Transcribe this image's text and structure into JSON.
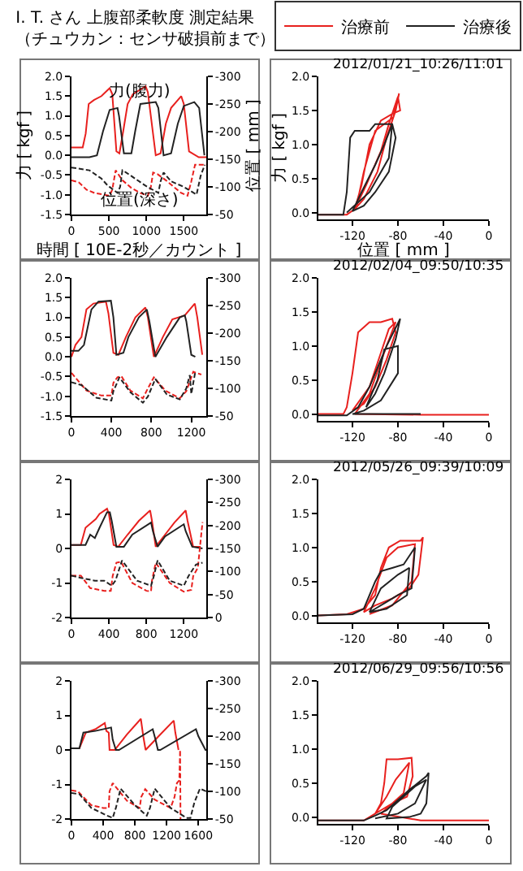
{
  "chart_data": [
    {
      "type": "line",
      "title": "I. T. さん 上腹部柔軟度 測定結果（チュウカン：センサ破損前まで）",
      "xlabel": "時間 [ 10E-2秒／カウント ]",
      "ylabel": "力 [ kgf ]",
      "y2label": "位置 [ mm ]",
      "legend": "top right",
      "annotations": [
        "力(腹力)",
        "位置(深さ)"
      ],
      "xlim": [
        0,
        1800
      ],
      "xticks": [
        0,
        500,
        1000,
        1500
      ],
      "ylim": [
        -1.5,
        2
      ],
      "yticks": [
        {
          "value": 2,
          "label": "2.0"
        },
        {
          "value": 1.5,
          "label": "1.5"
        },
        {
          "value": 1,
          "label": "1.0"
        },
        {
          "value": 0.5,
          "label": "0.5"
        },
        {
          "value": 0,
          "label": "0.0"
        },
        {
          "value": -0.5,
          "label": "-0.5"
        },
        {
          "value": -1,
          "label": "-1.0"
        },
        {
          "value": -1.5,
          "label": "-1.5"
        }
      ],
      "y2lim": [
        -50,
        -300
      ],
      "y2ticks": [
        -300,
        -250,
        -200,
        -150,
        -100,
        -50
      ],
      "series": [
        {
          "name": "治療前",
          "color": "#e8201e",
          "x": [
            0,
            150,
            190,
            230,
            300,
            400,
            510,
            545,
            600,
            640,
            690,
            750,
            820,
            990,
            1020,
            1125,
            1190,
            1260,
            1330,
            1465,
            1500,
            1570,
            1700,
            1800
          ],
          "values": [
            0.2,
            0.2,
            0.55,
            1.3,
            1.4,
            1.5,
            1.7,
            1.55,
            0.1,
            0.05,
            0.6,
            1.3,
            1.55,
            1.75,
            1.6,
            0.0,
            0.05,
            0.8,
            1.2,
            1.5,
            1.3,
            0.1,
            -0.05,
            -0.05
          ]
        },
        {
          "name": "治療後",
          "color": "#222222",
          "x": [
            0,
            240,
            340,
            420,
            510,
            615,
            635,
            700,
            800,
            850,
            920,
            1125,
            1160,
            1230,
            1330,
            1420,
            1500,
            1640,
            1705,
            1775
          ],
          "values": [
            -0.05,
            -0.05,
            0.0,
            0.6,
            1.15,
            1.2,
            1.0,
            0.05,
            0.05,
            0.6,
            1.3,
            1.35,
            1.2,
            0.0,
            0.05,
            0.8,
            1.25,
            1.35,
            1.2,
            0.0
          ]
        },
        {
          "color": "#e8201e",
          "axis": "y2",
          "line_style": "dashed",
          "x": [
            0,
            100,
            200,
            307,
            510,
            545,
            590,
            680,
            800,
            920,
            1020,
            1060,
            1090,
            1150,
            1260,
            1465,
            1550,
            1600,
            1650,
            1800
          ],
          "values": [
            -112,
            -108,
            -95,
            -89,
            -84,
            -95,
            -130,
            -112,
            -98,
            -89,
            -84,
            -100,
            -126,
            -123,
            -112,
            -89,
            -84,
            -110,
            -140,
            -140
          ]
        },
        {
          "color": "#222222",
          "axis": "y2",
          "line_style": "dashed",
          "x": [
            0,
            240,
            400,
            480,
            615,
            650,
            680,
            730,
            850,
            990,
            1160,
            1190,
            1230,
            1330,
            1500,
            1670,
            1725,
            1780
          ],
          "values": [
            -135,
            -130,
            -115,
            -103,
            -89,
            -100,
            -130,
            -126,
            -115,
            -102,
            -89,
            -110,
            -126,
            -110,
            -100,
            -86,
            -120,
            -140
          ]
        }
      ]
    },
    {
      "type": "line",
      "xlabel": "位置 [ mm ]",
      "ylabel": "力 [ kgf ]",
      "annotations": [
        "2012/01/21_10:26/11:01"
      ],
      "xlim": [
        -150,
        0
      ],
      "xticks": [
        -120,
        -80,
        -40,
        0
      ],
      "ylim": [
        -0.1,
        2
      ],
      "yticks": [
        {
          "value": 0,
          "label": "0.0"
        },
        0.5,
        {
          "value": 1,
          "label": "1.0"
        },
        1.5,
        {
          "value": 2,
          "label": "2.0"
        }
      ],
      "series": [
        {
          "color": "#e8201e",
          "x": [
            -150,
            -125,
            -118,
            -108,
            -95,
            -88,
            -80,
            -78,
            -85,
            -95,
            -105,
            -112,
            -118,
            -110,
            -98,
            -90,
            -82,
            -79,
            -84,
            -100,
            -110,
            -117
          ],
          "values": [
            -0.03,
            -0.03,
            0.05,
            0.4,
            0.9,
            1.3,
            1.7,
            1.5,
            1.45,
            1.35,
            1.0,
            0.4,
            0.05,
            0.2,
            0.6,
            1.1,
            1.5,
            1.75,
            1.4,
            1.2,
            0.6,
            0.05
          ]
        },
        {
          "color": "#222222",
          "x": [
            -150,
            -128,
            -125,
            -122,
            -118,
            -105,
            -100,
            -85,
            -82,
            -88,
            -100,
            -110,
            -120,
            -112,
            -100,
            -92,
            -85,
            -88,
            -105,
            -125
          ],
          "values": [
            -0.03,
            -0.03,
            0.3,
            1.1,
            1.2,
            1.2,
            1.3,
            1.3,
            1.1,
            0.6,
            0.3,
            0.1,
            0.02,
            0.3,
            0.7,
            1.0,
            1.3,
            0.8,
            0.3,
            0.0
          ]
        }
      ]
    },
    {
      "type": "line",
      "xlim": [
        0,
        1350
      ],
      "xticks": [
        0,
        400,
        800,
        1200
      ],
      "ylim": [
        -1.5,
        2
      ],
      "yticks": [
        {
          "value": 2,
          "label": "2.0"
        },
        {
          "value": 1.5,
          "label": "1.5"
        },
        {
          "value": 1,
          "label": "1.0"
        },
        {
          "value": 0.5,
          "label": "0.5"
        },
        {
          "value": 0,
          "label": "0.0"
        },
        {
          "value": -0.5,
          "label": "-0.5"
        },
        {
          "value": -1,
          "label": "-1.0"
        },
        {
          "value": -1.5,
          "label": "-1.5"
        }
      ],
      "y2lim": [
        -50,
        -300
      ],
      "y2ticks": [
        -300,
        -250,
        -200,
        -150,
        -100,
        -50
      ],
      "series": [
        {
          "color": "#e8201e",
          "x": [
            0,
            40,
            100,
            150,
            220,
            345,
            370,
            420,
            470,
            545,
            640,
            740,
            765,
            825,
            915,
            1010,
            1135,
            1235,
            1260,
            1310
          ],
          "values": [
            0.0,
            0.3,
            0.5,
            1.2,
            1.35,
            1.4,
            1.1,
            0.1,
            0.05,
            0.5,
            1.0,
            1.25,
            1.0,
            0.0,
            0.5,
            0.95,
            1.05,
            1.35,
            1.0,
            0.05
          ]
        },
        {
          "color": "#222222",
          "x": [
            0,
            70,
            125,
            200,
            270,
            395,
            420,
            450,
            520,
            570,
            675,
            755,
            780,
            840,
            955,
            1085,
            1135,
            1150,
            1200,
            1240
          ],
          "values": [
            0.15,
            0.15,
            0.3,
            1.2,
            1.4,
            1.42,
            1.0,
            0.05,
            0.1,
            0.5,
            1.0,
            1.2,
            0.9,
            0.0,
            0.5,
            1.0,
            1.05,
            0.9,
            0.05,
            0.0
          ]
        },
        {
          "color": "#e8201e",
          "axis": "y2",
          "line_style": "dashed",
          "x": [
            0,
            150,
            300,
            400,
            420,
            460,
            500,
            590,
            715,
            765,
            825,
            940,
            1085,
            1150,
            1220,
            1300
          ],
          "values": [
            -128,
            -96,
            -87,
            -87,
            -110,
            -120,
            -122,
            -96,
            -82,
            -100,
            -120,
            -96,
            -82,
            -95,
            -130,
            -125
          ]
        },
        {
          "color": "#222222",
          "axis": "y2",
          "line_style": "dashed",
          "x": [
            0,
            100,
            250,
            400,
            420,
            480,
            590,
            715,
            765,
            840,
            955,
            1085,
            1150,
            1185,
            1200,
            1240
          ],
          "values": [
            -111,
            -106,
            -83,
            -78,
            -95,
            -120,
            -93,
            -74,
            -85,
            -117,
            -89,
            -80,
            -100,
            -124,
            -90,
            -130
          ]
        }
      ]
    },
    {
      "type": "line",
      "annotations": [
        "2012/02/04_09:50/10:35"
      ],
      "xlim": [
        -150,
        0
      ],
      "xticks": [
        -120,
        -80,
        -40,
        0
      ],
      "ylim": [
        -0.1,
        2
      ],
      "yticks": [
        {
          "value": 0,
          "label": "0.0"
        },
        0.5,
        {
          "value": 1,
          "label": "1.0"
        },
        1.5,
        {
          "value": 2,
          "label": "2.0"
        }
      ],
      "series": [
        {
          "color": "#e8201e",
          "x": [
            -150,
            -128,
            -125,
            -120,
            -115,
            -105,
            -95,
            -85,
            -82,
            -90,
            -100,
            -110,
            -120,
            -105,
            -95,
            -88,
            -82,
            -90,
            -105,
            -118,
            -60,
            0
          ],
          "values": [
            0.0,
            0.0,
            0.1,
            0.6,
            1.2,
            1.35,
            1.35,
            1.4,
            1.2,
            0.8,
            0.4,
            0.15,
            0.05,
            0.4,
            0.9,
            1.25,
            1.35,
            1.0,
            0.3,
            0.0,
            -0.01,
            -0.01
          ]
        },
        {
          "color": "#222222",
          "x": [
            -150,
            -125,
            -115,
            -105,
            -95,
            -90,
            -78,
            -82,
            -92,
            -100,
            -108,
            -98,
            -92,
            -80,
            -80,
            -95,
            -110,
            -120,
            -60
          ],
          "values": [
            -0.02,
            -0.02,
            0.1,
            0.4,
            0.8,
            1.0,
            1.4,
            1.1,
            0.6,
            0.3,
            0.1,
            0.5,
            0.95,
            1.0,
            0.6,
            0.2,
            0.05,
            0.0,
            0.0
          ]
        }
      ]
    },
    {
      "type": "line",
      "xlim": [
        0,
        1440
      ],
      "xticks": [
        0,
        400,
        800,
        1200
      ],
      "ylim": [
        -2,
        2
      ],
      "yticks": [
        -2,
        -1,
        0,
        1,
        2
      ],
      "y2lim": [
        0,
        -300
      ],
      "y2ticks": [
        -300,
        -250,
        -200,
        -150,
        -100,
        -50,
        0
      ],
      "series": [
        {
          "color": "#e8201e",
          "x": [
            0,
            100,
            150,
            260,
            300,
            380,
            400,
            450,
            500,
            600,
            720,
            840,
            860,
            900,
            1000,
            1100,
            1220,
            1240,
            1300,
            1380
          ],
          "values": [
            0.1,
            0.1,
            0.6,
            0.85,
            1.0,
            1.15,
            1.0,
            0.1,
            0.05,
            0.4,
            0.8,
            1.1,
            0.8,
            0.05,
            0.4,
            0.75,
            1.1,
            0.8,
            0.05,
            0.05
          ]
        },
        {
          "color": "#222222",
          "x": [
            0,
            150,
            200,
            250,
            300,
            380,
            410,
            430,
            480,
            560,
            650,
            850,
            870,
            920,
            1000,
            1200,
            1220,
            1290,
            1400
          ],
          "values": [
            0.1,
            0.1,
            0.4,
            0.3,
            0.6,
            1.05,
            1.05,
            0.8,
            0.05,
            0.05,
            0.4,
            0.75,
            0.5,
            0.05,
            0.35,
            0.7,
            0.5,
            0.05,
            0.0
          ]
        },
        {
          "color": "#e8201e",
          "axis": "y2",
          "line_style": "dashed",
          "x": [
            0,
            100,
            200,
            350,
            420,
            440,
            480,
            530,
            650,
            800,
            850,
            860,
            900,
            1050,
            1200,
            1280,
            1300,
            1350,
            1400
          ],
          "values": [
            -91,
            -91,
            -64,
            -58,
            -58,
            -90,
            -119,
            -121,
            -75,
            -58,
            -57,
            -80,
            -119,
            -75,
            -56,
            -60,
            -90,
            -108,
            -207
          ]
        },
        {
          "color": "#222222",
          "axis": "y2",
          "line_style": "dashed",
          "x": [
            0,
            100,
            250,
            350,
            430,
            470,
            540,
            700,
            850,
            880,
            920,
            1050,
            1200,
            1250,
            1330,
            1400
          ],
          "values": [
            -91,
            -86,
            -80,
            -80,
            -69,
            -80,
            -124,
            -80,
            -69,
            -90,
            -124,
            -80,
            -69,
            -90,
            -115,
            -119
          ]
        }
      ]
    },
    {
      "type": "line",
      "annotations": [
        "2012/05/26_09:39/10:09"
      ],
      "xlim": [
        -150,
        0
      ],
      "xticks": [
        -120,
        -80,
        -40,
        0
      ],
      "ylim": [
        -0.1,
        2
      ],
      "yticks": [
        {
          "value": 0,
          "label": "0.0"
        },
        0.5,
        {
          "value": 1,
          "label": "1.0"
        },
        1.5,
        {
          "value": 2,
          "label": "2.0"
        }
      ],
      "series": [
        {
          "color": "#e8201e",
          "x": [
            -150,
            -125,
            -110,
            -100,
            -95,
            -88,
            -78,
            -60,
            -58,
            -62,
            -70,
            -85,
            -100,
            -110,
            -100,
            -90,
            -80,
            -65,
            -68,
            -85,
            -105
          ],
          "values": [
            0.0,
            0.02,
            0.1,
            0.3,
            0.7,
            1.0,
            1.1,
            1.1,
            1.15,
            0.6,
            0.4,
            0.25,
            0.15,
            0.05,
            0.4,
            0.85,
            1.0,
            1.05,
            0.5,
            0.15,
            0.02
          ]
        },
        {
          "color": "#222222",
          "x": [
            -150,
            -120,
            -110,
            -100,
            -95,
            -85,
            -75,
            -65,
            -68,
            -80,
            -90,
            -100,
            -105,
            -95,
            -80,
            -70,
            -72,
            -90,
            -105
          ],
          "values": [
            0.0,
            0.02,
            0.1,
            0.5,
            0.65,
            0.7,
            0.75,
            1.0,
            0.4,
            0.3,
            0.2,
            0.1,
            0.05,
            0.4,
            0.6,
            0.7,
            0.3,
            0.1,
            0.05
          ]
        }
      ]
    },
    {
      "type": "line",
      "xlim": [
        0,
        1700
      ],
      "xticks": [
        0,
        400,
        800,
        1200,
        1600
      ],
      "ylim": [
        -2,
        2
      ],
      "yticks": [
        -2,
        -1,
        0,
        1,
        2
      ],
      "y2lim": [
        -50,
        -300
      ],
      "y2ticks": [
        -300,
        -250,
        -200,
        -150,
        -100,
        -50
      ],
      "series": [
        {
          "color": "#e8201e",
          "x": [
            0,
            100,
            180,
            300,
            420,
            440,
            470,
            480,
            545,
            700,
            875,
            905,
            935,
            1100,
            1290,
            1310,
            1350
          ],
          "values": [
            0.05,
            0.05,
            0.5,
            0.6,
            0.78,
            0.55,
            0.5,
            0.0,
            0.0,
            0.45,
            0.9,
            0.4,
            0.0,
            0.4,
            0.85,
            0.5,
            0.0
          ]
        },
        {
          "color": "#222222",
          "x": [
            0,
            100,
            150,
            300,
            500,
            520,
            560,
            600,
            1025,
            1060,
            1090,
            1120,
            1570,
            1600,
            1690,
            1700
          ],
          "values": [
            0.05,
            0.05,
            0.5,
            0.55,
            0.65,
            0.3,
            0.0,
            0.0,
            0.6,
            0.3,
            0.0,
            0.0,
            0.6,
            0.4,
            0.0,
            0.0
          ]
        },
        {
          "color": "#e8201e",
          "axis": "y2",
          "line_style": "dashed",
          "x": [
            0,
            80,
            250,
            400,
            470,
            480,
            520,
            700,
            860,
            880,
            930,
            1050,
            1250,
            1300,
            1330,
            1360,
            1370,
            1375
          ],
          "values": [
            -102,
            -100,
            -75,
            -70,
            -70,
            -100,
            -115,
            -83,
            -70,
            -90,
            -104,
            -85,
            -70,
            -90,
            -115,
            -120,
            -175,
            -50
          ]
        },
        {
          "color": "#222222",
          "axis": "y2",
          "line_style": "dashed",
          "x": [
            0,
            100,
            250,
            450,
            520,
            560,
            620,
            800,
            950,
            990,
            1050,
            1250,
            1450,
            1500,
            1550,
            1620,
            1700
          ],
          "values": [
            -97,
            -95,
            -70,
            -56,
            -52,
            -70,
            -105,
            -75,
            -56,
            -70,
            -105,
            -70,
            -52,
            -52,
            -80,
            -105,
            -100
          ]
        }
      ]
    },
    {
      "type": "line",
      "annotations": [
        "2012/06/29_09:56/10:56"
      ],
      "xlim": [
        -150,
        0
      ],
      "xticks": [
        -120,
        -80,
        -40,
        0
      ],
      "ylim": [
        -0.1,
        2
      ],
      "yticks": [
        {
          "value": 0,
          "label": "0.0"
        },
        0.5,
        {
          "value": 1,
          "label": "1.0"
        },
        1.5,
        {
          "value": 2,
          "label": "2.0"
        }
      ],
      "series": [
        {
          "color": "#e8201e",
          "x": [
            -150,
            -110,
            -100,
            -95,
            -92,
            -90,
            -80,
            -68,
            -67,
            -72,
            -85,
            -95,
            -100,
            -90,
            -82,
            -70,
            -75,
            -95,
            -60,
            0
          ],
          "values": [
            -0.05,
            -0.05,
            0.05,
            0.2,
            0.5,
            0.85,
            0.85,
            0.87,
            0.6,
            0.3,
            0.2,
            0.1,
            0.05,
            0.3,
            0.55,
            0.8,
            0.35,
            0.05,
            -0.05,
            -0.05
          ]
        },
        {
          "color": "#222222",
          "x": [
            -150,
            -110,
            -100,
            -90,
            -80,
            -70,
            -55,
            -53,
            -55,
            -60,
            -70,
            -90,
            -85,
            -75,
            -65,
            -55,
            -65,
            -80,
            -100
          ],
          "values": [
            -0.05,
            -0.05,
            0.02,
            0.1,
            0.25,
            0.4,
            0.6,
            0.65,
            0.2,
            0.05,
            0.0,
            -0.02,
            0.15,
            0.3,
            0.45,
            0.55,
            0.2,
            0.05,
            -0.02
          ]
        }
      ]
    }
  ]
}
